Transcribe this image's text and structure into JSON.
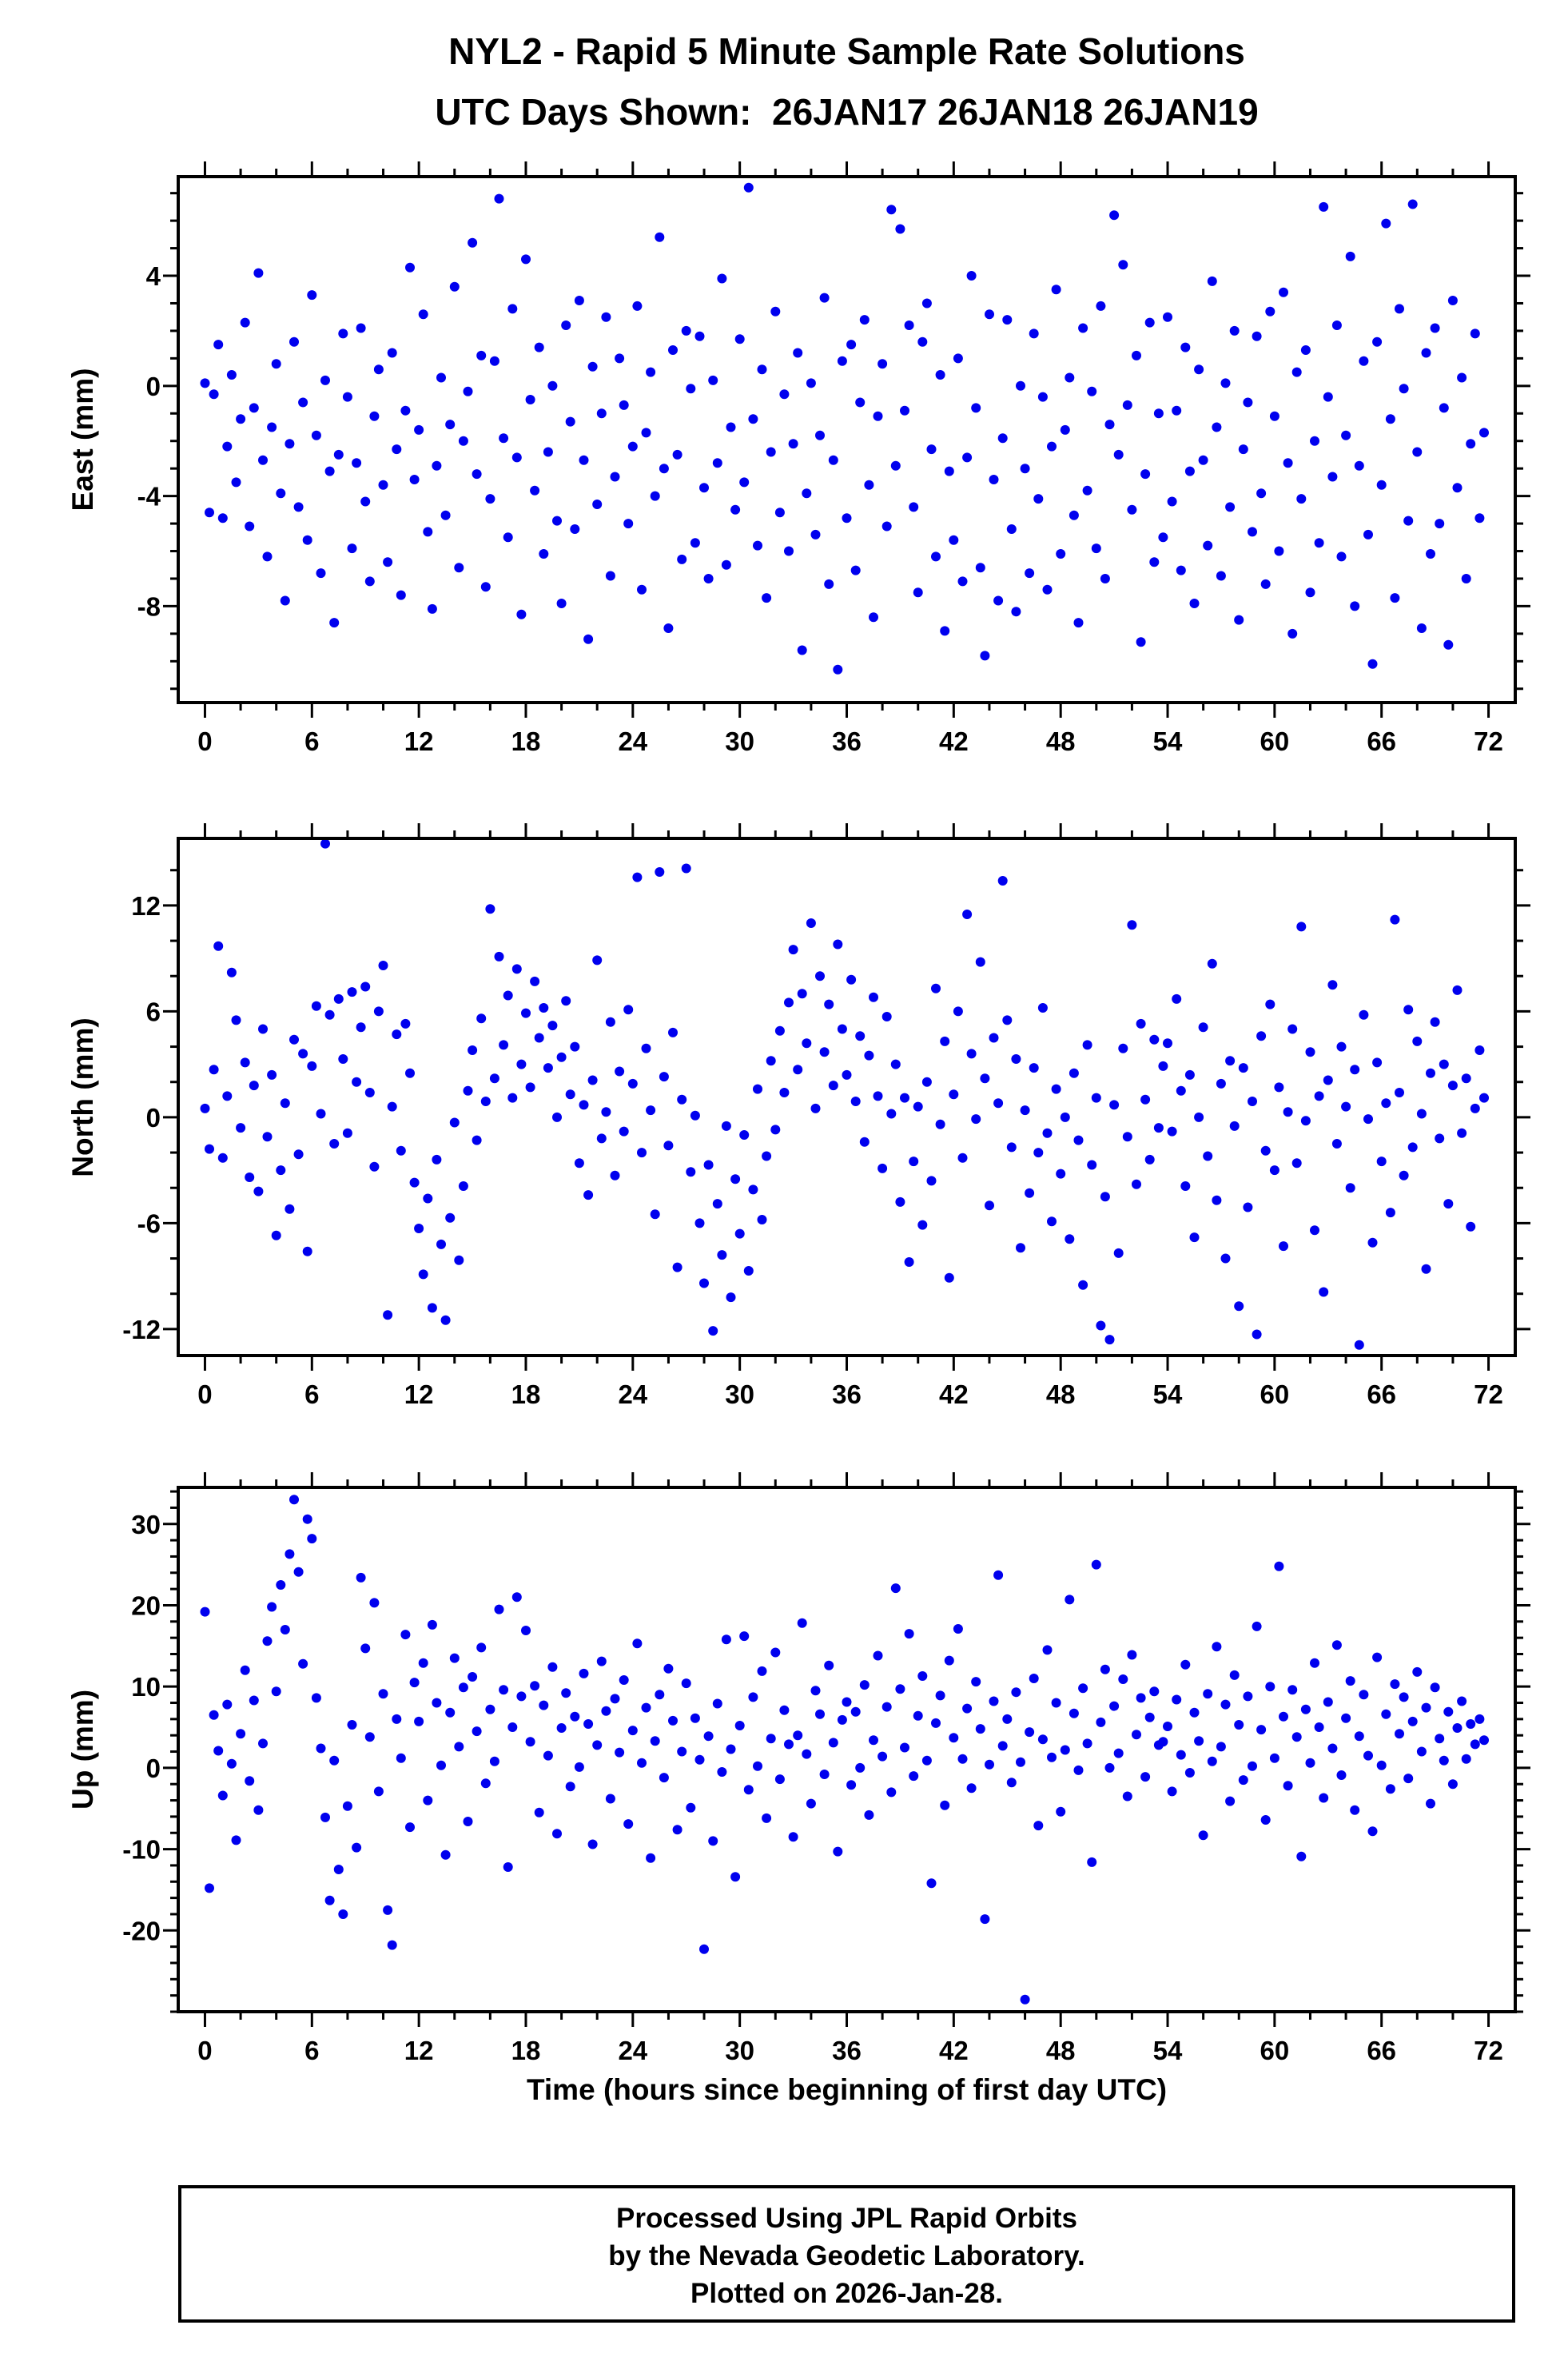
{
  "title": "NYL2 - Rapid 5 Minute Sample Rate Solutions",
  "subtitle": "UTC Days Shown:  26JAN17 26JAN18 26JAN19",
  "xlabel": "Time (hours since beginning of first day UTC)",
  "footer": {
    "line1": "Processed Using JPL Rapid Orbits",
    "line2": "by the Nevada Geodetic Laboratory.",
    "line3": "Plotted on 2026-Jan-28."
  },
  "colors": {
    "point": "#0000EE",
    "frame": "#000000"
  },
  "chart_data": [
    {
      "type": "scatter",
      "name": "East",
      "ylabel": "East (mm)",
      "xlim": [
        -1.5,
        73.5
      ],
      "ylim": [
        -11.5,
        7.6
      ],
      "xticks": [
        0,
        6,
        12,
        18,
        24,
        30,
        36,
        42,
        48,
        54,
        60,
        66,
        72
      ],
      "yticks": [
        -8,
        -4,
        0,
        4
      ],
      "x_minor": 2,
      "y_minor": 1,
      "x_start": 0,
      "x_step": 0.25,
      "values": [
        0.1,
        -4.6,
        -0.3,
        1.5,
        -4.8,
        -2.2,
        0.4,
        -3.5,
        -1.2,
        2.3,
        -5.1,
        -0.8,
        4.1,
        -2.7,
        -6.2,
        -1.5,
        0.8,
        -3.9,
        -7.8,
        -2.1,
        1.6,
        -4.4,
        -0.6,
        -5.6,
        3.3,
        -1.8,
        -6.8,
        0.2,
        -3.1,
        -8.6,
        -2.5,
        1.9,
        -0.4,
        -5.9,
        -2.8,
        2.1,
        -4.2,
        -7.1,
        -1.1,
        0.6,
        -3.6,
        -6.4,
        1.2,
        -2.3,
        -7.6,
        -0.9,
        4.3,
        -3.4,
        -1.6,
        2.6,
        -5.3,
        -8.1,
        -2.9,
        0.3,
        -4.7,
        -1.4,
        3.6,
        -6.6,
        -2.0,
        -0.2,
        5.2,
        -3.2,
        1.1,
        -7.3,
        -4.1,
        0.9,
        6.8,
        -1.9,
        -5.5,
        2.8,
        -2.6,
        -8.3,
        4.6,
        -0.5,
        -3.8,
        1.4,
        -6.1,
        -2.4,
        0.0,
        -4.9,
        -7.9,
        2.2,
        -1.3,
        -5.2,
        3.1,
        -2.7,
        -9.2,
        0.7,
        -4.3,
        -1.0,
        2.5,
        -6.9,
        -3.3,
        1.0,
        -0.7,
        -5.0,
        -2.2,
        2.9,
        -7.4,
        -1.7,
        0.5,
        -4.0,
        5.4,
        -3.0,
        -8.8,
        1.3,
        -2.5,
        -6.3,
        2.0,
        -0.1,
        -5.7,
        1.8,
        -3.7,
        -7.0,
        0.2,
        -2.8,
        3.9,
        -6.5,
        -1.5,
        -4.5,
        1.7,
        -3.5,
        7.2,
        -1.2,
        -5.8,
        0.6,
        -7.7,
        -2.4,
        2.7,
        -4.6,
        -0.3,
        -6.0,
        -2.1,
        1.2,
        -9.6,
        -3.9,
        0.1,
        -5.4,
        -1.8,
        3.2,
        -7.2,
        -2.7,
        -10.3,
        0.9,
        -4.8,
        1.5,
        -6.7,
        -0.6,
        2.4,
        -3.6,
        -8.4,
        -1.1,
        0.8,
        -5.1,
        6.4,
        -2.9,
        5.7,
        -0.9,
        2.2,
        -4.4,
        -7.5,
        1.6,
        3.0,
        -2.3,
        -6.2,
        0.4,
        -8.9,
        -3.1,
        -5.6,
        1.0,
        -7.1,
        -2.6,
        4.0,
        -0.8,
        -6.6,
        -9.8,
        2.6,
        -3.4,
        -7.8,
        -1.9,
        2.4,
        -5.2,
        -8.2,
        0.0,
        -3.0,
        -6.8,
        1.9,
        -4.1,
        -0.4,
        -7.4,
        -2.2,
        3.5,
        -6.1,
        -1.6,
        0.3,
        -4.7,
        -8.6,
        2.1,
        -3.8,
        -0.2,
        -5.9,
        2.9,
        -7.0,
        -1.4,
        6.2,
        -2.5,
        4.4,
        -0.7,
        -4.5,
        1.1,
        -9.3,
        -3.2,
        2.3,
        -6.4,
        -1.0,
        -5.5,
        2.5,
        -4.2,
        -0.9,
        -6.7,
        1.4,
        -3.1,
        -7.9,
        0.6,
        -2.7,
        -5.8,
        3.8,
        -1.5,
        -6.9,
        0.1,
        -4.4,
        2.0,
        -8.5,
        -2.3,
        -0.6,
        -5.3,
        1.8,
        -3.9,
        -7.2,
        2.7,
        -1.1,
        -6.0,
        3.4,
        -2.8,
        -9.0,
        0.5,
        -4.1,
        1.3,
        -7.5,
        -2.0,
        -5.7,
        6.5,
        -0.4,
        -3.3,
        2.2,
        -6.2,
        -1.8,
        4.7,
        -8.0,
        -2.9,
        0.9,
        -5.4,
        -10.1,
        1.6,
        -3.6,
        5.9,
        -1.2,
        -7.7,
        2.8,
        -0.1,
        -4.9,
        6.6,
        -2.4,
        -8.8,
        1.2,
        -6.1,
        2.1,
        -5.0,
        -0.8,
        -9.4,
        3.1,
        -3.7,
        0.3,
        -7.0,
        -2.1,
        1.9,
        -4.8,
        -1.7
      ]
    },
    {
      "type": "scatter",
      "name": "North",
      "ylabel": "North (mm)",
      "xlim": [
        -1.5,
        73.5
      ],
      "ylim": [
        -13.5,
        15.8
      ],
      "xticks": [
        0,
        6,
        12,
        18,
        24,
        30,
        36,
        42,
        48,
        54,
        60,
        66,
        72
      ],
      "yticks": [
        -12,
        -6,
        0,
        6,
        12
      ],
      "x_minor": 2,
      "y_minor": 2,
      "x_start": 0,
      "x_step": 0.25,
      "values": [
        0.5,
        -1.8,
        2.7,
        9.7,
        -2.3,
        1.2,
        8.2,
        5.5,
        -0.6,
        3.1,
        -3.4,
        1.8,
        -4.2,
        5.0,
        -1.1,
        2.4,
        -6.7,
        -3.0,
        0.8,
        -5.2,
        4.4,
        -2.1,
        3.6,
        -7.6,
        2.9,
        6.3,
        0.2,
        15.5,
        5.8,
        -1.5,
        6.7,
        3.3,
        -0.9,
        7.1,
        2.0,
        5.1,
        7.4,
        1.4,
        -2.8,
        6.0,
        8.6,
        -11.2,
        0.6,
        4.7,
        -1.9,
        5.3,
        2.5,
        -3.7,
        -6.3,
        -8.9,
        -4.6,
        -10.8,
        -2.4,
        -7.2,
        -11.5,
        -5.7,
        -0.3,
        -8.1,
        -3.9,
        1.5,
        3.8,
        -1.3,
        5.6,
        0.9,
        11.8,
        2.2,
        9.1,
        4.1,
        6.9,
        1.1,
        8.4,
        3.0,
        5.9,
        1.7,
        7.7,
        4.5,
        6.2,
        2.8,
        5.2,
        0.0,
        3.4,
        6.6,
        1.3,
        4.0,
        -2.6,
        0.7,
        -4.4,
        2.1,
        8.9,
        -1.2,
        0.3,
        5.4,
        -3.3,
        2.6,
        -0.8,
        6.1,
        1.9,
        13.6,
        -2.0,
        3.9,
        0.4,
        -5.5,
        13.9,
        2.3,
        -1.6,
        4.8,
        -8.5,
        1.0,
        14.1,
        -3.1,
        0.1,
        -6.0,
        -9.4,
        -2.7,
        -12.1,
        -4.9,
        -7.8,
        -0.5,
        -10.2,
        -3.5,
        -6.6,
        -1.0,
        -8.7,
        -4.1,
        1.6,
        -5.8,
        -2.2,
        3.2,
        -0.7,
        4.9,
        1.4,
        6.5,
        9.5,
        2.7,
        7.0,
        4.2,
        11.0,
        0.5,
        8.0,
        3.7,
        6.4,
        1.8,
        9.8,
        5.0,
        2.4,
        7.8,
        0.9,
        4.6,
        -1.4,
        3.5,
        6.8,
        1.2,
        -2.9,
        5.7,
        0.2,
        3.0,
        -4.8,
        1.1,
        -8.2,
        -2.5,
        0.6,
        -6.1,
        2.0,
        -3.6,
        7.3,
        -0.4,
        4.3,
        -9.1,
        1.3,
        6.0,
        -2.3,
        11.5,
        3.6,
        -0.1,
        8.8,
        2.2,
        -5.0,
        4.5,
        0.8,
        13.4,
        5.5,
        -1.7,
        3.3,
        -7.4,
        0.4,
        -4.3,
        2.8,
        -2.0,
        6.2,
        -0.9,
        -5.9,
        1.6,
        -3.2,
        0.0,
        -6.9,
        2.5,
        -1.3,
        -9.5,
        4.1,
        -2.7,
        1.1,
        -11.8,
        -4.5,
        -12.6,
        0.7,
        -7.7,
        3.9,
        -1.1,
        10.9,
        -3.8,
        5.3,
        1.0,
        -2.4,
        4.4,
        -0.6,
        2.9,
        4.2,
        -0.8,
        6.7,
        1.5,
        -3.9,
        2.4,
        -6.8,
        0.0,
        5.1,
        -2.2,
        8.7,
        -4.7,
        1.9,
        -8.0,
        3.2,
        -0.5,
        -10.7,
        2.8,
        -5.1,
        0.9,
        -12.3,
        4.6,
        -1.9,
        6.4,
        -3.0,
        1.7,
        -7.3,
        0.3,
        5.0,
        -2.6,
        10.8,
        -0.2,
        3.7,
        -6.4,
        1.2,
        -9.9,
        2.1,
        7.5,
        -1.5,
        4.0,
        0.6,
        -4.0,
        2.7,
        -12.9,
        5.8,
        -0.1,
        -7.1,
        3.1,
        -2.5,
        0.8,
        -5.4,
        11.2,
        1.4,
        -3.3,
        6.1,
        -1.7,
        4.3,
        0.2,
        -8.6,
        2.5,
        5.4,
        -1.2,
        3.0,
        -4.9,
        1.8,
        7.2,
        -0.9,
        2.2,
        -6.2,
        0.5,
        3.8,
        1.1
      ]
    },
    {
      "type": "scatter",
      "name": "Up",
      "ylabel": "Up (mm)",
      "xlim": [
        -1.5,
        73.5
      ],
      "ylim": [
        -30,
        34.5
      ],
      "xticks": [
        0,
        6,
        12,
        18,
        24,
        30,
        36,
        42,
        48,
        54,
        60,
        66,
        72
      ],
      "yticks": [
        -20,
        -10,
        0,
        10,
        20,
        30
      ],
      "x_minor": 2,
      "y_minor": 2,
      "x_start": 0,
      "x_step": 0.25,
      "values": [
        19.2,
        -14.8,
        6.5,
        2.1,
        -3.4,
        7.8,
        0.5,
        -8.9,
        4.2,
        12.0,
        -1.6,
        8.3,
        -5.2,
        3.0,
        15.6,
        19.8,
        9.4,
        22.5,
        17.0,
        26.3,
        33.0,
        24.1,
        12.8,
        30.6,
        28.2,
        8.6,
        2.4,
        -6.1,
        -16.3,
        0.9,
        -12.5,
        -18.0,
        -4.7,
        5.3,
        -9.8,
        23.4,
        14.7,
        3.8,
        20.3,
        -2.9,
        9.1,
        -17.5,
        -21.8,
        6.0,
        1.2,
        16.4,
        -7.3,
        10.5,
        5.7,
        12.9,
        -4.0,
        17.6,
        8.0,
        0.3,
        -10.7,
        6.8,
        13.5,
        2.6,
        9.9,
        -6.6,
        11.2,
        4.5,
        14.8,
        -1.9,
        7.2,
        0.8,
        19.5,
        9.6,
        -12.2,
        5.0,
        21.0,
        8.8,
        16.9,
        3.2,
        10.1,
        -5.5,
        7.7,
        1.5,
        12.4,
        -8.1,
        4.9,
        9.2,
        -2.3,
        6.3,
        0.1,
        11.6,
        5.4,
        -9.4,
        2.8,
        13.1,
        7.0,
        -3.8,
        8.5,
        1.9,
        10.8,
        -6.9,
        4.6,
        15.3,
        0.6,
        7.4,
        -11.1,
        3.3,
        9.0,
        -1.2,
        12.2,
        5.8,
        -7.6,
        2.0,
        10.4,
        -4.9,
        6.1,
        1.0,
        -22.3,
        3.9,
        -9.0,
        7.9,
        -0.5,
        15.8,
        2.3,
        -13.4,
        5.2,
        16.2,
        -2.7,
        8.7,
        0.2,
        11.9,
        -6.2,
        3.6,
        14.2,
        -1.4,
        7.1,
        2.9,
        -8.5,
        4.0,
        17.8,
        1.7,
        -4.4,
        9.5,
        6.6,
        -0.8,
        12.6,
        3.1,
        -10.3,
        5.9,
        8.1,
        -2.1,
        6.9,
        0.0,
        10.2,
        -5.8,
        3.4,
        13.8,
        1.4,
        7.5,
        -3.0,
        22.1,
        9.7,
        2.5,
        16.5,
        -1.0,
        6.4,
        11.3,
        0.9,
        -14.2,
        5.5,
        8.9,
        -4.6,
        13.2,
        3.7,
        17.1,
        1.1,
        7.3,
        -2.5,
        10.6,
        4.8,
        -18.6,
        0.4,
        8.2,
        23.7,
        2.7,
        6.0,
        -1.8,
        9.3,
        0.7,
        -28.5,
        4.4,
        11.0,
        -7.1,
        3.5,
        14.5,
        1.3,
        8.0,
        -5.4,
        2.2,
        20.7,
        6.7,
        -0.3,
        9.8,
        3.0,
        -11.6,
        25.0,
        5.6,
        12.1,
        0.0,
        7.6,
        1.8,
        10.9,
        -3.5,
        13.9,
        4.1,
        8.6,
        -1.1,
        6.2,
        9.4,
        2.8,
        3.2,
        5.1,
        -2.9,
        8.4,
        1.6,
        12.7,
        -0.6,
        6.8,
        3.3,
        -8.3,
        9.1,
        0.8,
        14.9,
        2.6,
        7.8,
        -4.1,
        11.4,
        5.3,
        -1.5,
        8.8,
        0.2,
        17.4,
        4.7,
        -6.4,
        10.0,
        1.2,
        24.8,
        6.3,
        -2.2,
        9.6,
        3.8,
        -10.9,
        7.2,
        0.6,
        12.9,
        5.0,
        -3.7,
        8.1,
        2.4,
        15.1,
        -0.9,
        6.1,
        10.7,
        -5.2,
        3.9,
        9.0,
        1.5,
        -7.8,
        13.6,
        0.3,
        6.6,
        -2.6,
        10.3,
        4.2,
        8.7,
        -1.3,
        5.7,
        11.8,
        2.0,
        7.4,
        -4.4,
        9.9,
        3.6,
        0.9,
        6.9,
        -2.0,
        4.9,
        8.2,
        1.1,
        5.4,
        2.9,
        6.0,
        3.4
      ]
    }
  ]
}
